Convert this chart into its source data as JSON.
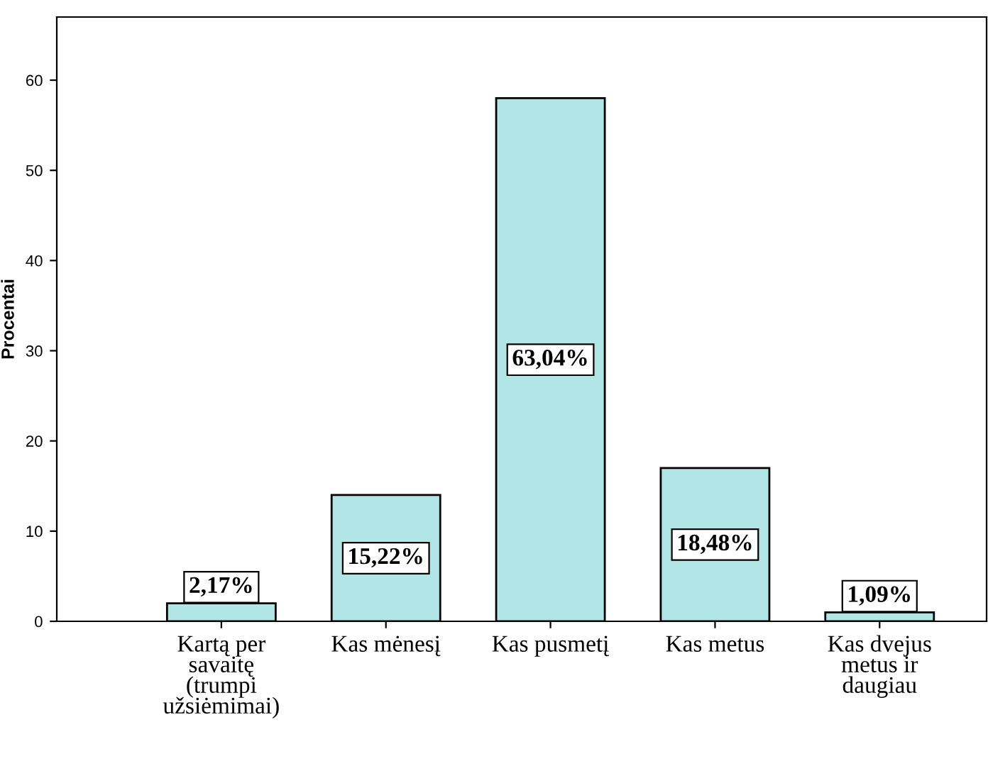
{
  "chart_data": {
    "type": "bar",
    "ylabel": "Procentai",
    "categories": [
      "Kartą per\nsavaitę\n(trumpi\nužsiėmimai)",
      "Kas mėnesį",
      "Kas pusmetį",
      "Kas metus",
      "Kas dvejus\nmetus ir\ndaugiau"
    ],
    "values": [
      2,
      14,
      58,
      17,
      1
    ],
    "annotations": [
      "2,17%",
      "15,22%",
      "63,04%",
      "18,48%",
      "1,09%"
    ],
    "color": "#b2e6e6",
    "ylim": [
      0,
      67
    ],
    "yticks": [
      0,
      10,
      20,
      30,
      40,
      50,
      60
    ],
    "grid": false
  }
}
